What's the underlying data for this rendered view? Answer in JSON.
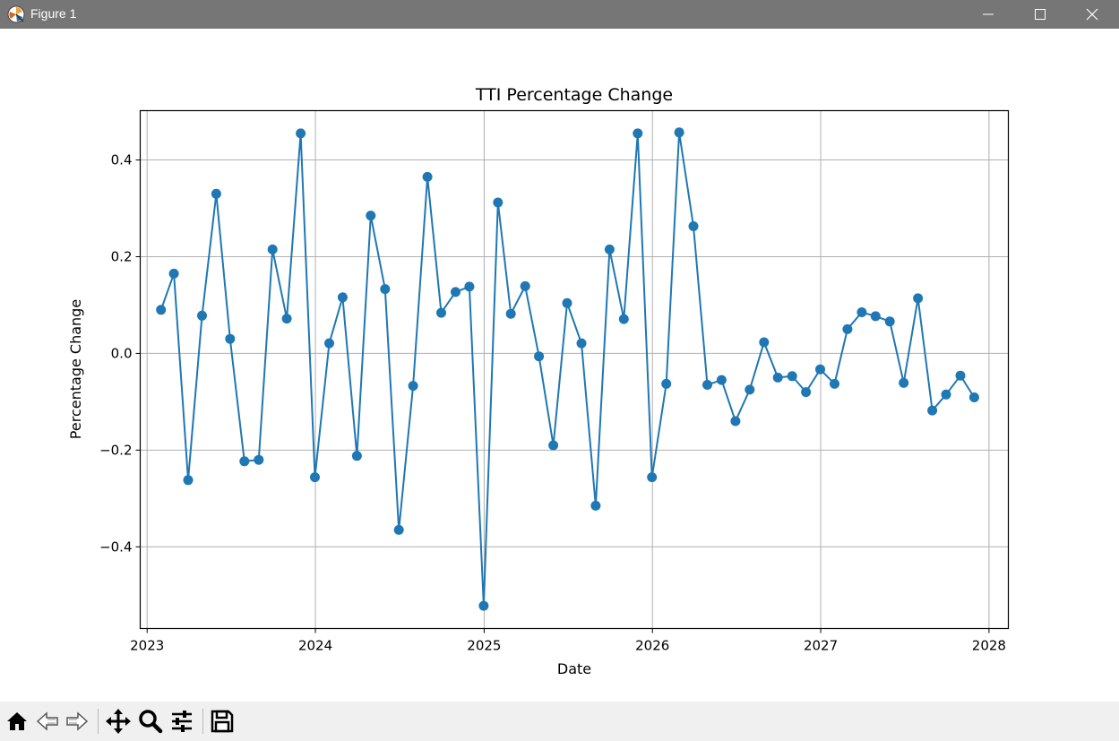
{
  "window": {
    "title": "Figure 1",
    "controls": [
      "minimize-icon",
      "maximize-icon",
      "close-icon"
    ]
  },
  "toolbar": {
    "tools": [
      "home-icon",
      "back-arrow-icon",
      "forward-arrow-icon",
      "pan-icon",
      "zoom-icon",
      "configure-subplots-icon",
      "save-icon"
    ]
  },
  "colors": {
    "line": "#1f77b4",
    "grid": "#b0b0b0",
    "titlebar": "#767676",
    "toolbar": "#f0f0f0"
  },
  "chart_data": {
    "type": "line",
    "title": "TTI Percentage Change",
    "xlabel": "Date",
    "ylabel": "Percentage Change",
    "xlim": [
      "2022-12-17",
      "2028-02-12"
    ],
    "ylim": [
      -0.569,
      0.502
    ],
    "xticks": [
      "2023-01-01",
      "2024-01-01",
      "2025-01-01",
      "2026-01-01",
      "2027-01-01",
      "2028-01-01"
    ],
    "xtick_labels": [
      "2023",
      "2024",
      "2025",
      "2026",
      "2027",
      "2028"
    ],
    "yticks": [
      -0.4,
      -0.2,
      0.0,
      0.2,
      0.4
    ],
    "ytick_labels": [
      "−0.4",
      "−0.2",
      "0.0",
      "0.2",
      "0.4"
    ],
    "grid": true,
    "marker": "circle",
    "series": [
      {
        "color": "#1f77b4",
        "x": [
          "2023-01-31",
          "2023-02-28",
          "2023-03-31",
          "2023-04-30",
          "2023-05-31",
          "2023-06-30",
          "2023-07-31",
          "2023-08-31",
          "2023-09-30",
          "2023-10-31",
          "2023-11-30",
          "2023-12-31",
          "2024-01-31",
          "2024-02-29",
          "2024-03-31",
          "2024-04-30",
          "2024-05-31",
          "2024-06-30",
          "2024-07-31",
          "2024-08-31",
          "2024-09-30",
          "2024-10-31",
          "2024-11-30",
          "2024-12-31",
          "2025-01-31",
          "2025-02-28",
          "2025-03-31",
          "2025-04-30",
          "2025-05-31",
          "2025-06-30",
          "2025-07-31",
          "2025-08-31",
          "2025-09-30",
          "2025-10-31",
          "2025-11-30",
          "2025-12-31",
          "2026-01-31",
          "2026-02-28",
          "2026-03-31",
          "2026-04-30",
          "2026-05-31",
          "2026-06-30",
          "2026-07-31",
          "2026-08-31",
          "2026-09-30",
          "2026-10-31",
          "2026-11-30",
          "2026-12-31",
          "2027-01-31",
          "2027-02-28",
          "2027-03-31",
          "2027-04-30",
          "2027-05-31",
          "2027-06-30",
          "2027-07-31",
          "2027-08-31",
          "2027-09-30",
          "2027-10-31",
          "2027-11-30"
        ],
        "values": [
          0.09,
          0.165,
          -0.262,
          0.078,
          0.33,
          0.03,
          -0.223,
          -0.22,
          0.215,
          0.072,
          0.455,
          -0.256,
          0.021,
          0.116,
          -0.212,
          0.285,
          0.133,
          -0.365,
          -0.067,
          0.365,
          0.084,
          0.127,
          0.138,
          -0.522,
          0.312,
          0.082,
          0.139,
          -0.006,
          -0.19,
          0.104,
          0.021,
          -0.315,
          0.215,
          0.071,
          0.455,
          -0.256,
          -0.063,
          0.457,
          0.263,
          -0.065,
          -0.055,
          -0.14,
          -0.075,
          0.023,
          -0.05,
          -0.047,
          -0.08,
          -0.033,
          -0.063,
          0.05,
          0.085,
          0.077,
          0.066,
          -0.061,
          0.114,
          -0.118,
          -0.085,
          -0.046,
          -0.091
        ]
      }
    ]
  }
}
